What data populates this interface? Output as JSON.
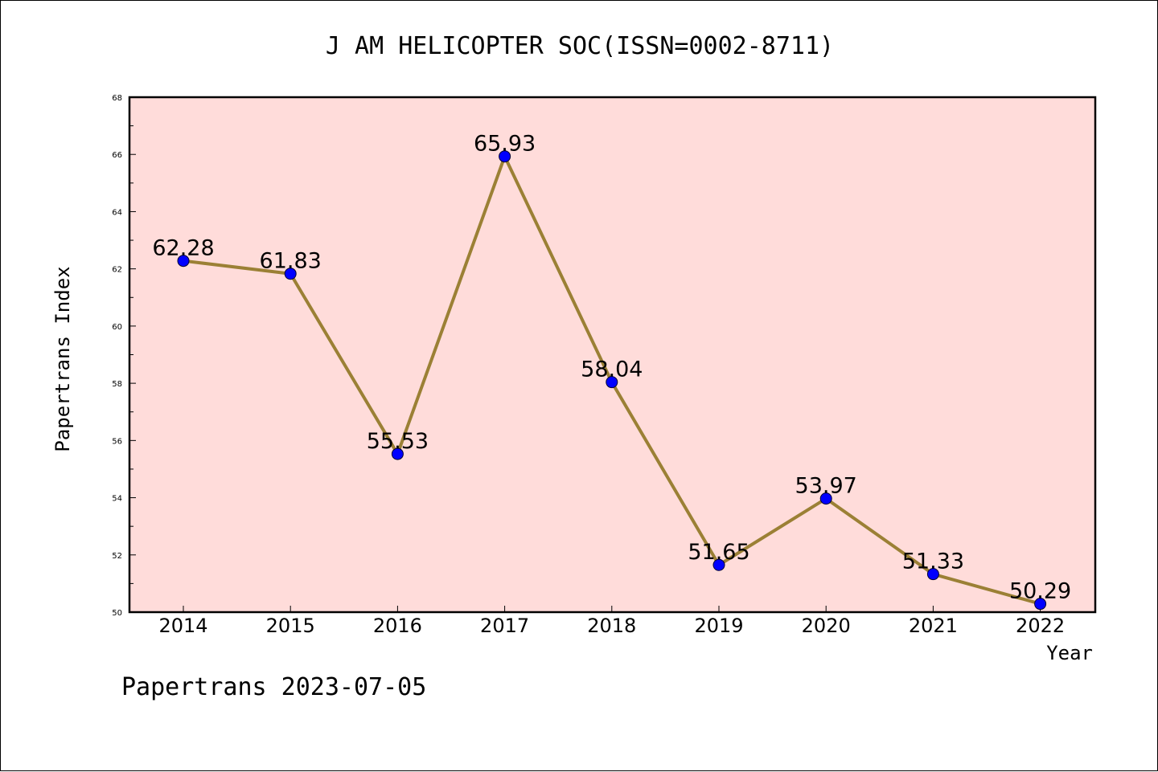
{
  "chart_data": {
    "type": "line",
    "title": "J AM HELICOPTER SOC(ISSN=0002-8711)",
    "xlabel": "Year",
    "ylabel": "Papertrans Index",
    "categories": [
      "2014",
      "2015",
      "2016",
      "2017",
      "2018",
      "2019",
      "2020",
      "2021",
      "2022"
    ],
    "series": [
      {
        "name": "Papertrans Index",
        "values": [
          62.28,
          61.83,
          55.53,
          65.93,
          58.04,
          51.65,
          53.97,
          51.33,
          50.29
        ],
        "labels": [
          "62.28",
          "61.83",
          "55.53",
          "65.93",
          "58.04",
          "51.65",
          "53.97",
          "51.33",
          "50.29"
        ]
      }
    ],
    "ylim": [
      50,
      68
    ],
    "yticks": [
      50,
      52,
      54,
      56,
      58,
      60,
      62,
      64,
      66,
      68
    ],
    "grid": false,
    "legend": "none"
  },
  "footer": "Papertrans 2023-07-05",
  "colors": {
    "plot_background": "#ffdcda",
    "line": "#9b8035",
    "marker": "#0000ff",
    "axis": "#000000"
  }
}
